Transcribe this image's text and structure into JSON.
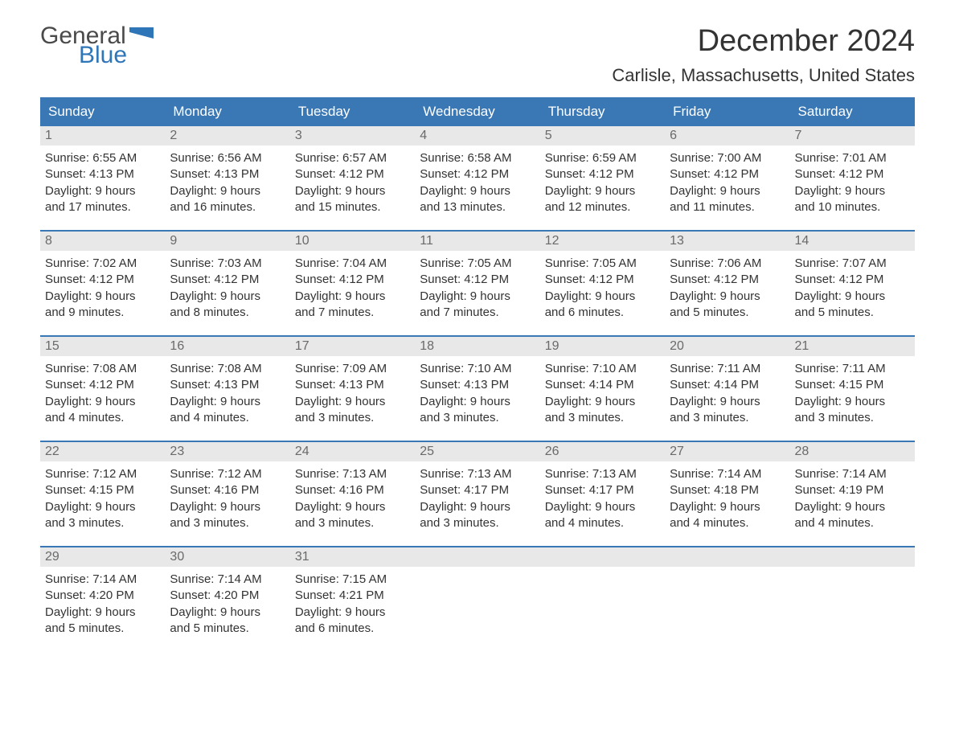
{
  "brand": {
    "part1": "General",
    "part2": "Blue",
    "flag_color": "#2f76b8",
    "text_color_1": "#4a4a4a",
    "text_color_2": "#2f76b8"
  },
  "title": "December 2024",
  "location": "Carlisle, Massachusetts, United States",
  "colors": {
    "header_bg": "#3a78b5",
    "header_text": "#ffffff",
    "daynum_bg": "#e8e8e8",
    "daynum_text": "#6a6a6a",
    "week_border": "#3a78b5",
    "body_text": "#333333",
    "page_bg": "#ffffff"
  },
  "day_names": [
    "Sunday",
    "Monday",
    "Tuesday",
    "Wednesday",
    "Thursday",
    "Friday",
    "Saturday"
  ],
  "weeks": [
    [
      {
        "n": "1",
        "sunrise": "Sunrise: 6:55 AM",
        "sunset": "Sunset: 4:13 PM",
        "dl1": "Daylight: 9 hours",
        "dl2": "and 17 minutes."
      },
      {
        "n": "2",
        "sunrise": "Sunrise: 6:56 AM",
        "sunset": "Sunset: 4:13 PM",
        "dl1": "Daylight: 9 hours",
        "dl2": "and 16 minutes."
      },
      {
        "n": "3",
        "sunrise": "Sunrise: 6:57 AM",
        "sunset": "Sunset: 4:12 PM",
        "dl1": "Daylight: 9 hours",
        "dl2": "and 15 minutes."
      },
      {
        "n": "4",
        "sunrise": "Sunrise: 6:58 AM",
        "sunset": "Sunset: 4:12 PM",
        "dl1": "Daylight: 9 hours",
        "dl2": "and 13 minutes."
      },
      {
        "n": "5",
        "sunrise": "Sunrise: 6:59 AM",
        "sunset": "Sunset: 4:12 PM",
        "dl1": "Daylight: 9 hours",
        "dl2": "and 12 minutes."
      },
      {
        "n": "6",
        "sunrise": "Sunrise: 7:00 AM",
        "sunset": "Sunset: 4:12 PM",
        "dl1": "Daylight: 9 hours",
        "dl2": "and 11 minutes."
      },
      {
        "n": "7",
        "sunrise": "Sunrise: 7:01 AM",
        "sunset": "Sunset: 4:12 PM",
        "dl1": "Daylight: 9 hours",
        "dl2": "and 10 minutes."
      }
    ],
    [
      {
        "n": "8",
        "sunrise": "Sunrise: 7:02 AM",
        "sunset": "Sunset: 4:12 PM",
        "dl1": "Daylight: 9 hours",
        "dl2": "and 9 minutes."
      },
      {
        "n": "9",
        "sunrise": "Sunrise: 7:03 AM",
        "sunset": "Sunset: 4:12 PM",
        "dl1": "Daylight: 9 hours",
        "dl2": "and 8 minutes."
      },
      {
        "n": "10",
        "sunrise": "Sunrise: 7:04 AM",
        "sunset": "Sunset: 4:12 PM",
        "dl1": "Daylight: 9 hours",
        "dl2": "and 7 minutes."
      },
      {
        "n": "11",
        "sunrise": "Sunrise: 7:05 AM",
        "sunset": "Sunset: 4:12 PM",
        "dl1": "Daylight: 9 hours",
        "dl2": "and 7 minutes."
      },
      {
        "n": "12",
        "sunrise": "Sunrise: 7:05 AM",
        "sunset": "Sunset: 4:12 PM",
        "dl1": "Daylight: 9 hours",
        "dl2": "and 6 minutes."
      },
      {
        "n": "13",
        "sunrise": "Sunrise: 7:06 AM",
        "sunset": "Sunset: 4:12 PM",
        "dl1": "Daylight: 9 hours",
        "dl2": "and 5 minutes."
      },
      {
        "n": "14",
        "sunrise": "Sunrise: 7:07 AM",
        "sunset": "Sunset: 4:12 PM",
        "dl1": "Daylight: 9 hours",
        "dl2": "and 5 minutes."
      }
    ],
    [
      {
        "n": "15",
        "sunrise": "Sunrise: 7:08 AM",
        "sunset": "Sunset: 4:12 PM",
        "dl1": "Daylight: 9 hours",
        "dl2": "and 4 minutes."
      },
      {
        "n": "16",
        "sunrise": "Sunrise: 7:08 AM",
        "sunset": "Sunset: 4:13 PM",
        "dl1": "Daylight: 9 hours",
        "dl2": "and 4 minutes."
      },
      {
        "n": "17",
        "sunrise": "Sunrise: 7:09 AM",
        "sunset": "Sunset: 4:13 PM",
        "dl1": "Daylight: 9 hours",
        "dl2": "and 3 minutes."
      },
      {
        "n": "18",
        "sunrise": "Sunrise: 7:10 AM",
        "sunset": "Sunset: 4:13 PM",
        "dl1": "Daylight: 9 hours",
        "dl2": "and 3 minutes."
      },
      {
        "n": "19",
        "sunrise": "Sunrise: 7:10 AM",
        "sunset": "Sunset: 4:14 PM",
        "dl1": "Daylight: 9 hours",
        "dl2": "and 3 minutes."
      },
      {
        "n": "20",
        "sunrise": "Sunrise: 7:11 AM",
        "sunset": "Sunset: 4:14 PM",
        "dl1": "Daylight: 9 hours",
        "dl2": "and 3 minutes."
      },
      {
        "n": "21",
        "sunrise": "Sunrise: 7:11 AM",
        "sunset": "Sunset: 4:15 PM",
        "dl1": "Daylight: 9 hours",
        "dl2": "and 3 minutes."
      }
    ],
    [
      {
        "n": "22",
        "sunrise": "Sunrise: 7:12 AM",
        "sunset": "Sunset: 4:15 PM",
        "dl1": "Daylight: 9 hours",
        "dl2": "and 3 minutes."
      },
      {
        "n": "23",
        "sunrise": "Sunrise: 7:12 AM",
        "sunset": "Sunset: 4:16 PM",
        "dl1": "Daylight: 9 hours",
        "dl2": "and 3 minutes."
      },
      {
        "n": "24",
        "sunrise": "Sunrise: 7:13 AM",
        "sunset": "Sunset: 4:16 PM",
        "dl1": "Daylight: 9 hours",
        "dl2": "and 3 minutes."
      },
      {
        "n": "25",
        "sunrise": "Sunrise: 7:13 AM",
        "sunset": "Sunset: 4:17 PM",
        "dl1": "Daylight: 9 hours",
        "dl2": "and 3 minutes."
      },
      {
        "n": "26",
        "sunrise": "Sunrise: 7:13 AM",
        "sunset": "Sunset: 4:17 PM",
        "dl1": "Daylight: 9 hours",
        "dl2": "and 4 minutes."
      },
      {
        "n": "27",
        "sunrise": "Sunrise: 7:14 AM",
        "sunset": "Sunset: 4:18 PM",
        "dl1": "Daylight: 9 hours",
        "dl2": "and 4 minutes."
      },
      {
        "n": "28",
        "sunrise": "Sunrise: 7:14 AM",
        "sunset": "Sunset: 4:19 PM",
        "dl1": "Daylight: 9 hours",
        "dl2": "and 4 minutes."
      }
    ],
    [
      {
        "n": "29",
        "sunrise": "Sunrise: 7:14 AM",
        "sunset": "Sunset: 4:20 PM",
        "dl1": "Daylight: 9 hours",
        "dl2": "and 5 minutes."
      },
      {
        "n": "30",
        "sunrise": "Sunrise: 7:14 AM",
        "sunset": "Sunset: 4:20 PM",
        "dl1": "Daylight: 9 hours",
        "dl2": "and 5 minutes."
      },
      {
        "n": "31",
        "sunrise": "Sunrise: 7:15 AM",
        "sunset": "Sunset: 4:21 PM",
        "dl1": "Daylight: 9 hours",
        "dl2": "and 6 minutes."
      },
      {
        "empty": true
      },
      {
        "empty": true
      },
      {
        "empty": true
      },
      {
        "empty": true
      }
    ]
  ]
}
